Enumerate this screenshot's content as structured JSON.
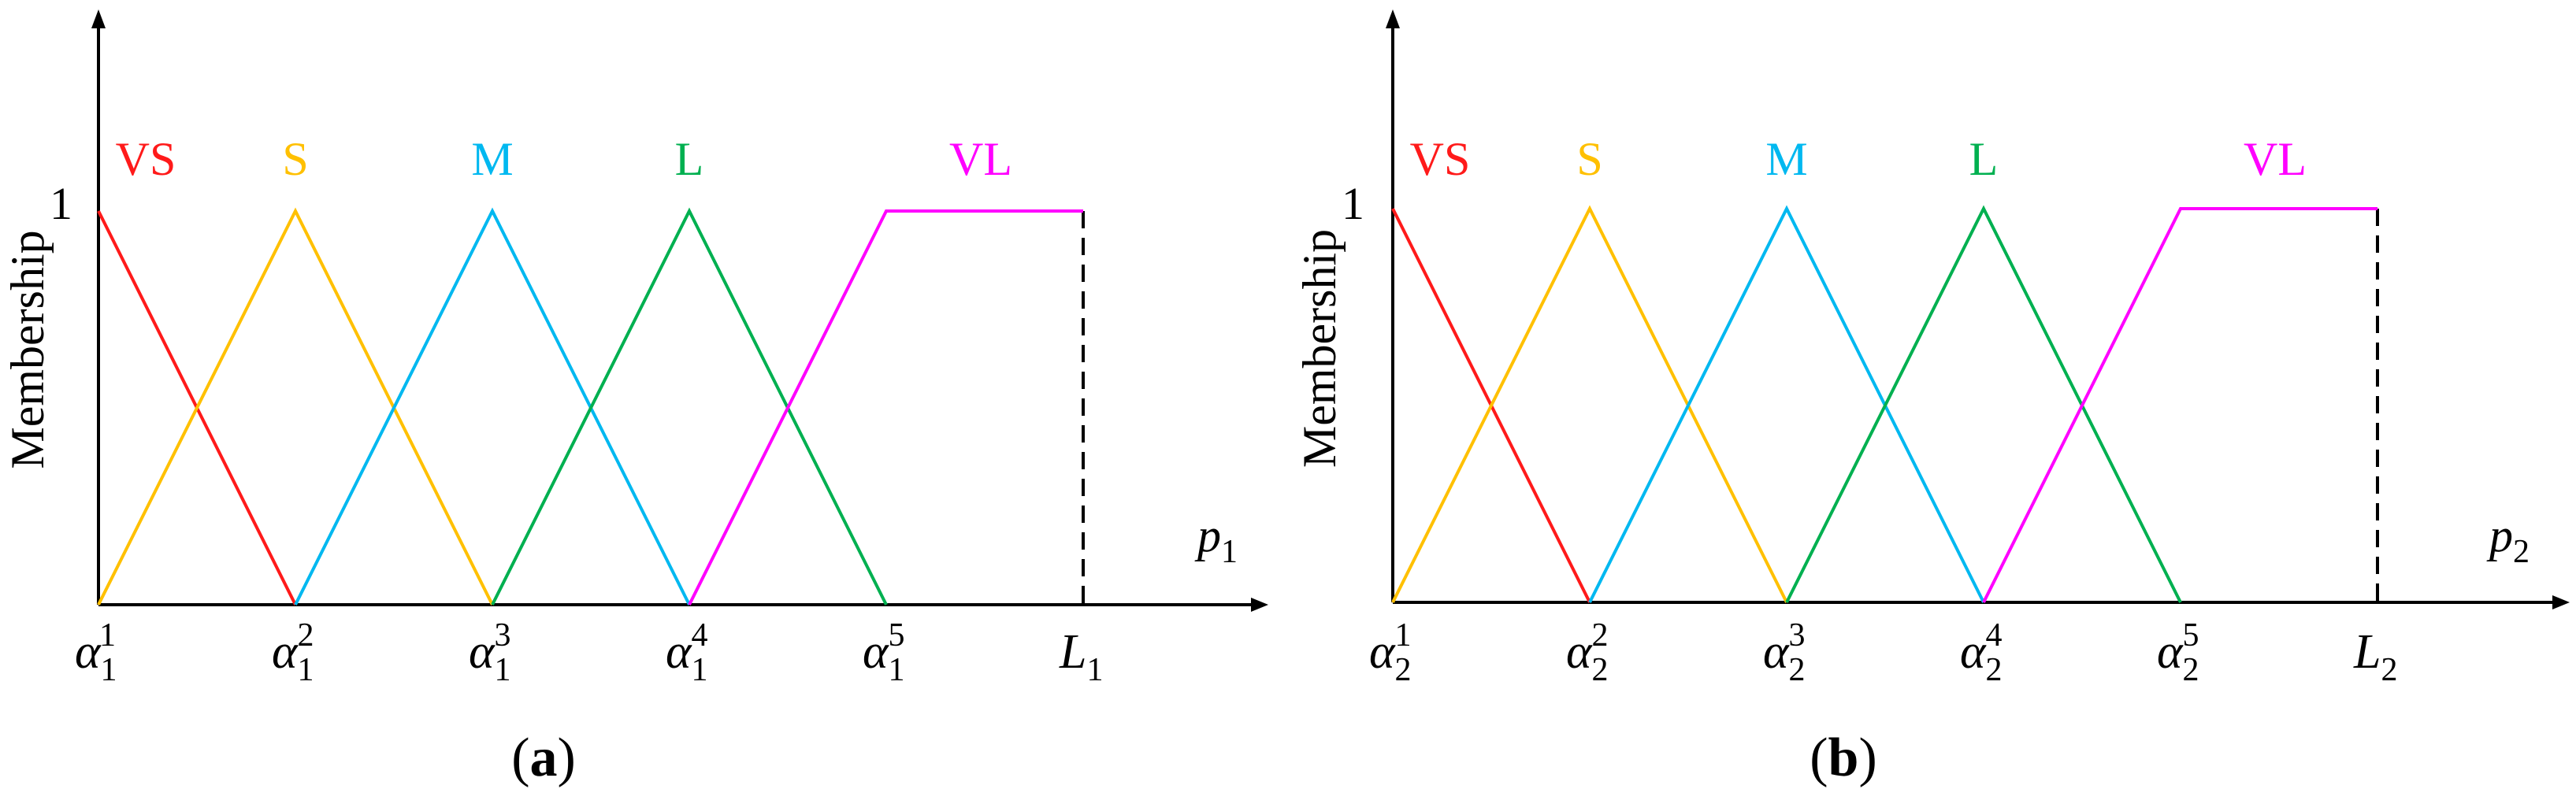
{
  "chart_data": [
    {
      "type": "line",
      "panel_label": "(a)",
      "panel_letter": "a",
      "ylabel": "Membership",
      "xvar": "p",
      "xvar_sub": "1",
      "y_tick": "1",
      "x_ticks": [
        {
          "base": "α",
          "sub": "1",
          "sup": "1"
        },
        {
          "base": "α",
          "sub": "1",
          "sup": "2"
        },
        {
          "base": "α",
          "sub": "1",
          "sup": "3"
        },
        {
          "base": "α",
          "sub": "1",
          "sup": "4"
        },
        {
          "base": "α",
          "sub": "1",
          "sup": "5"
        },
        {
          "base": "L",
          "sub": "1",
          "sup": ""
        }
      ],
      "series": [
        {
          "name": "VS",
          "color": "#ff1a1a",
          "x": [
            0,
            1
          ],
          "y": [
            1,
            0
          ]
        },
        {
          "name": "S",
          "color": "#ffc000",
          "x": [
            0,
            1,
            2
          ],
          "y": [
            0,
            1,
            0
          ]
        },
        {
          "name": "M",
          "color": "#00b8f0",
          "x": [
            1,
            2,
            3
          ],
          "y": [
            0,
            1,
            0
          ]
        },
        {
          "name": "L",
          "color": "#00b050",
          "x": [
            2,
            3,
            4
          ],
          "y": [
            0,
            1,
            0
          ]
        },
        {
          "name": "VL",
          "color": "#ff00ff",
          "x": [
            3,
            4,
            5
          ],
          "y": [
            0,
            1,
            1
          ]
        }
      ]
    },
    {
      "type": "line",
      "panel_label": "(b)",
      "panel_letter": "b",
      "ylabel": "Membership",
      "xvar": "p",
      "xvar_sub": "2",
      "y_tick": "1",
      "x_ticks": [
        {
          "base": "α",
          "sub": "2",
          "sup": "1"
        },
        {
          "base": "α",
          "sub": "2",
          "sup": "2"
        },
        {
          "base": "α",
          "sub": "2",
          "sup": "3"
        },
        {
          "base": "α",
          "sub": "2",
          "sup": "4"
        },
        {
          "base": "α",
          "sub": "2",
          "sup": "5"
        },
        {
          "base": "L",
          "sub": "2",
          "sup": ""
        }
      ],
      "series": [
        {
          "name": "VS",
          "color": "#ff1a1a",
          "x": [
            0,
            1
          ],
          "y": [
            1,
            0
          ]
        },
        {
          "name": "S",
          "color": "#ffc000",
          "x": [
            0,
            1,
            2
          ],
          "y": [
            0,
            1,
            0
          ]
        },
        {
          "name": "M",
          "color": "#00b8f0",
          "x": [
            1,
            2,
            3
          ],
          "y": [
            0,
            1,
            0
          ]
        },
        {
          "name": "L",
          "color": "#00b050",
          "x": [
            2,
            3,
            4
          ],
          "y": [
            0,
            1,
            0
          ]
        },
        {
          "name": "VL",
          "color": "#ff00ff",
          "x": [
            3,
            4,
            5
          ],
          "y": [
            0,
            1,
            1
          ]
        }
      ]
    }
  ]
}
